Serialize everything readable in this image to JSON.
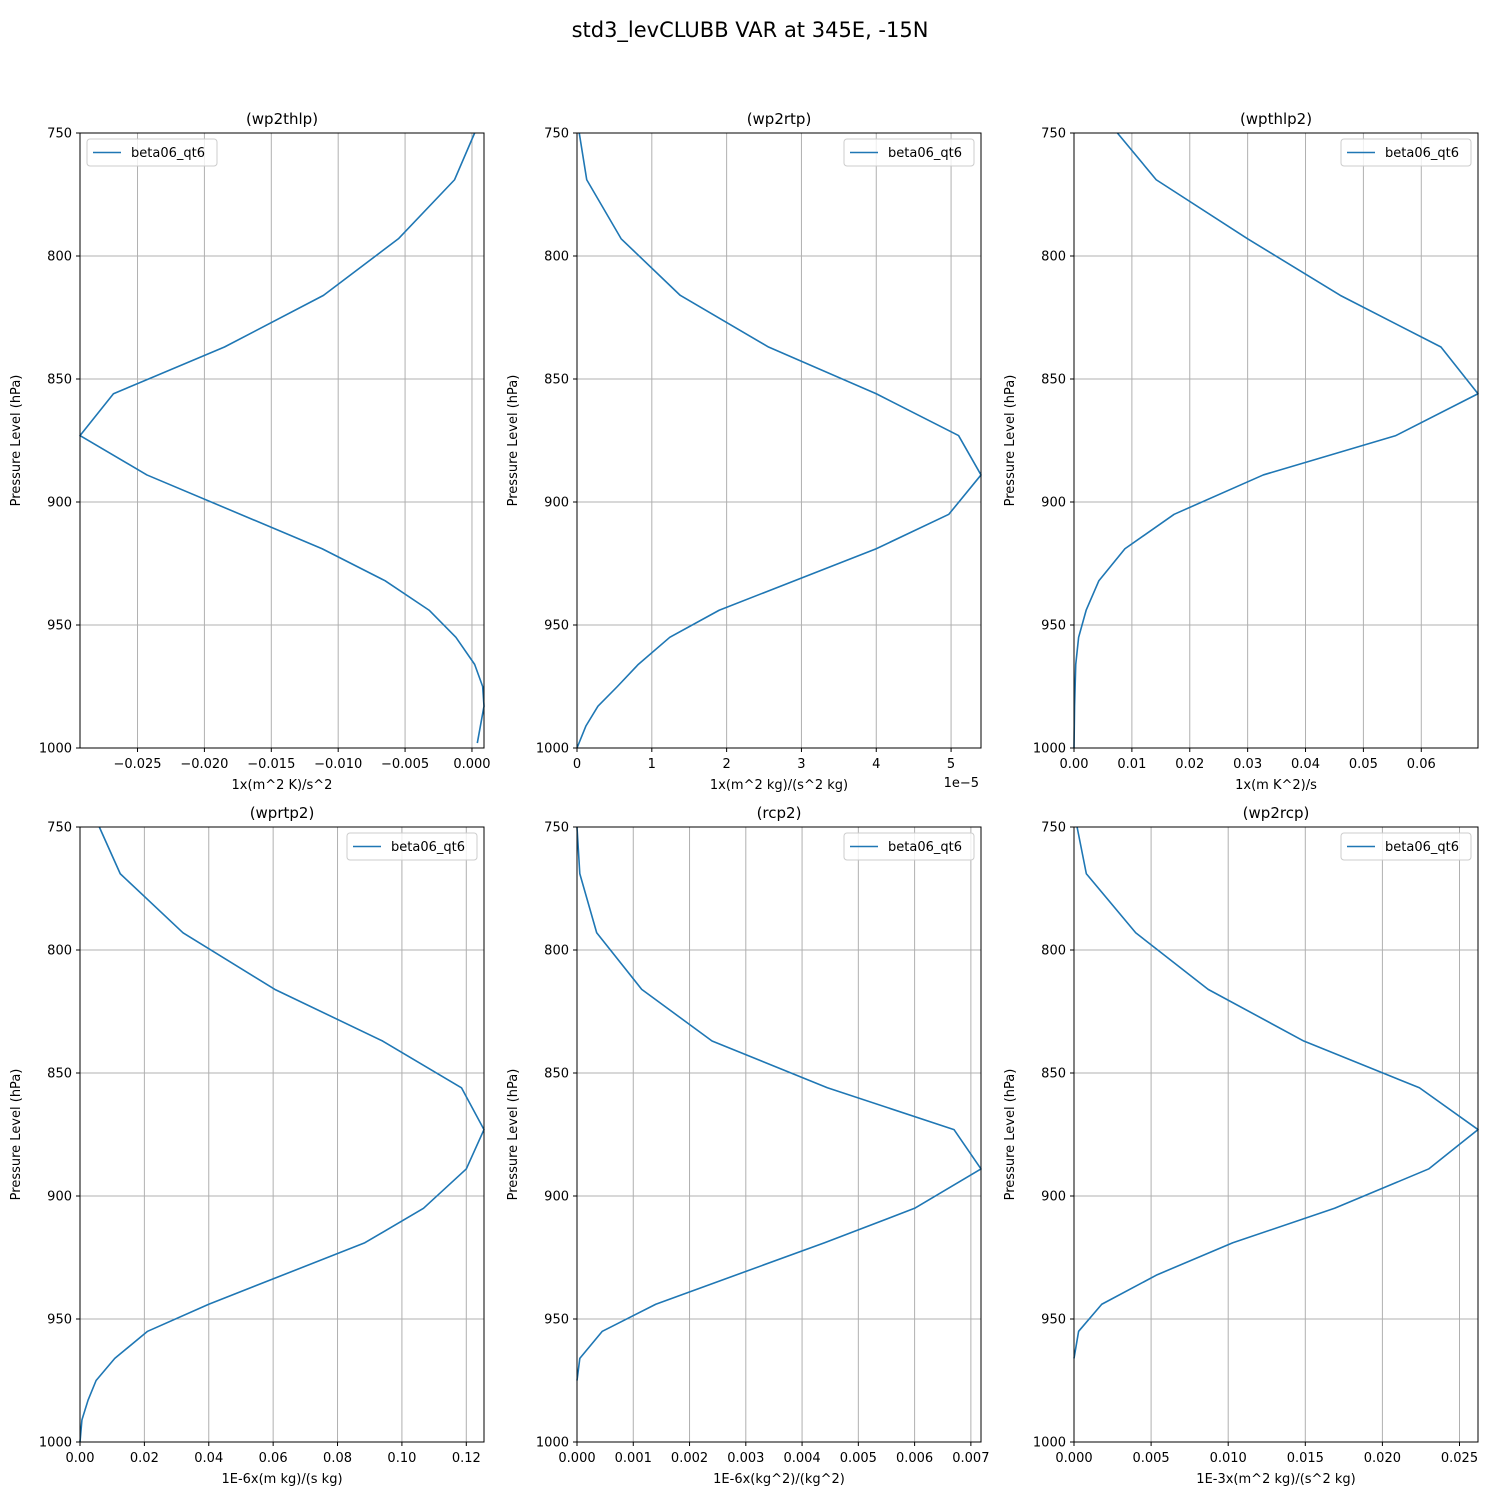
{
  "title": "std3_levCLUBB VAR at 345E, -15N",
  "colors": {
    "series": "#1f77b4",
    "grid": "#b0b0b0"
  },
  "chart_data": [
    {
      "type": "line",
      "title": "(wp2thlp)",
      "xlabel": "1x(m^2 K)/s^2",
      "ylabel": "Pressure Level (hPa)",
      "xlim": [
        -0.0293,
        0.0009
      ],
      "ylim": [
        1000,
        750
      ],
      "y_inverted": true,
      "x_ticks": [
        -0.025,
        -0.02,
        -0.015,
        -0.01,
        -0.005,
        0.0
      ],
      "x_tick_labels": [
        "−0.025",
        "−0.020",
        "−0.015",
        "−0.010",
        "−0.005",
        "0.000"
      ],
      "y_ticks": [
        750,
        800,
        850,
        900,
        950,
        1000
      ],
      "y_tick_labels": [
        "750",
        "800",
        "850",
        "900",
        "950",
        "1000"
      ],
      "x_offset_label": "",
      "legend": {
        "position": "upper-left",
        "entries": [
          "beta06_qt6"
        ]
      },
      "grid": true,
      "series": [
        {
          "name": "beta06_qt6",
          "x": [
            0.0002,
            -0.0013,
            -0.0055,
            -0.0111,
            -0.0185,
            -0.0268,
            -0.0293,
            -0.0243,
            -0.0112,
            -0.0065,
            -0.0032,
            -0.0012,
            0.0002,
            0.0008,
            0.0009,
            0.0004
          ],
          "y": [
            750,
            769,
            793,
            816,
            837,
            856,
            873,
            889,
            919,
            932,
            944,
            955,
            966,
            975,
            983,
            998
          ]
        }
      ]
    },
    {
      "type": "line",
      "title": "(wp2rtp)",
      "xlabel": "1x(m^2 kg)/(s^2 kg)",
      "ylabel": "Pressure Level (hPa)",
      "xlim": [
        0,
        5.4
      ],
      "ylim": [
        1000,
        750
      ],
      "y_inverted": true,
      "x_ticks": [
        0,
        1,
        2,
        3,
        4,
        5
      ],
      "x_tick_labels": [
        "0",
        "1",
        "2",
        "3",
        "4",
        "5"
      ],
      "y_ticks": [
        750,
        800,
        850,
        900,
        950,
        1000
      ],
      "y_tick_labels": [
        "750",
        "800",
        "850",
        "900",
        "950",
        "1000"
      ],
      "x_offset_label": "1e−5",
      "legend": {
        "position": "upper-right",
        "entries": [
          "beta06_qt6"
        ]
      },
      "grid": true,
      "series": [
        {
          "name": "beta06_qt6",
          "x": [
            0.03,
            0.13,
            0.59,
            1.38,
            2.56,
            4.0,
            5.1,
            5.4,
            4.97,
            4.0,
            1.9,
            1.24,
            0.82,
            0.54,
            0.28,
            0.12,
            0.0
          ],
          "y": [
            750,
            769,
            793,
            816,
            837,
            856,
            873,
            889,
            905,
            919,
            944,
            955,
            966,
            975,
            983,
            991,
            1000
          ]
        }
      ]
    },
    {
      "type": "line",
      "title": "(wpthlp2)",
      "xlabel": "1x(m K^2)/s",
      "ylabel": "Pressure Level (hPa)",
      "xlim": [
        0,
        0.0698
      ],
      "ylim": [
        1000,
        750
      ],
      "y_inverted": true,
      "x_ticks": [
        0.0,
        0.01,
        0.02,
        0.03,
        0.04,
        0.05,
        0.06
      ],
      "x_tick_labels": [
        "0.00",
        "0.01",
        "0.02",
        "0.03",
        "0.04",
        "0.05",
        "0.06"
      ],
      "y_ticks": [
        750,
        800,
        850,
        900,
        950,
        1000
      ],
      "y_tick_labels": [
        "750",
        "800",
        "850",
        "900",
        "950",
        "1000"
      ],
      "x_offset_label": "",
      "legend": {
        "position": "upper-right",
        "entries": [
          "beta06_qt6"
        ]
      },
      "grid": true,
      "series": [
        {
          "name": "beta06_qt6",
          "x": [
            0.0075,
            0.0142,
            0.03,
            0.046,
            0.0634,
            0.0698,
            0.0556,
            0.0327,
            0.0173,
            0.0088,
            0.0043,
            0.0021,
            0.0008,
            0.0003,
            0.0001,
            0.0
          ],
          "y": [
            750,
            769,
            793,
            816,
            837,
            856,
            873,
            889,
            905,
            919,
            932,
            944,
            955,
            966,
            983,
            1000
          ]
        }
      ]
    },
    {
      "type": "line",
      "title": "(wprtp2)",
      "xlabel": "1E-6x(m kg)/(s kg)",
      "ylabel": "Pressure Level (hPa)",
      "xlim": [
        0,
        0.1255
      ],
      "ylim": [
        1000,
        750
      ],
      "y_inverted": true,
      "x_ticks": [
        0.0,
        0.02,
        0.04,
        0.06,
        0.08,
        0.1,
        0.12
      ],
      "x_tick_labels": [
        "0.00",
        "0.02",
        "0.04",
        "0.06",
        "0.08",
        "0.10",
        "0.12"
      ],
      "y_ticks": [
        750,
        800,
        850,
        900,
        950,
        1000
      ],
      "y_tick_labels": [
        "750",
        "800",
        "850",
        "900",
        "950",
        "1000"
      ],
      "x_offset_label": "",
      "legend": {
        "position": "upper-right",
        "entries": [
          "beta06_qt6"
        ]
      },
      "grid": true,
      "series": [
        {
          "name": "beta06_qt6",
          "x": [
            0.006,
            0.0125,
            0.032,
            0.0605,
            0.094,
            0.1185,
            0.1255,
            0.12,
            0.1067,
            0.0885,
            0.04,
            0.021,
            0.0108,
            0.005,
            0.0025,
            0.0006,
            0.0
          ],
          "y": [
            750,
            769,
            793,
            816,
            837,
            856,
            873,
            889,
            905,
            919,
            944,
            955,
            966,
            975,
            983,
            991,
            1000
          ]
        }
      ]
    },
    {
      "type": "line",
      "title": "(rcp2)",
      "xlabel": "1E-6x(kg^2)/(kg^2)",
      "ylabel": "Pressure Level (hPa)",
      "xlim": [
        0,
        0.00718
      ],
      "ylim": [
        1000,
        750
      ],
      "y_inverted": true,
      "x_ticks": [
        0.0,
        0.001,
        0.002,
        0.003,
        0.004,
        0.005,
        0.006,
        0.007
      ],
      "x_tick_labels": [
        "0.000",
        "0.001",
        "0.002",
        "0.003",
        "0.004",
        "0.005",
        "0.006",
        "0.007"
      ],
      "y_ticks": [
        750,
        800,
        850,
        900,
        950,
        1000
      ],
      "y_tick_labels": [
        "750",
        "800",
        "850",
        "900",
        "950",
        "1000"
      ],
      "x_offset_label": "",
      "legend": {
        "position": "upper-right",
        "entries": [
          "beta06_qt6"
        ]
      },
      "grid": true,
      "series": [
        {
          "name": "beta06_qt6",
          "x": [
            0.0,
            5e-05,
            0.00035,
            0.00115,
            0.0024,
            0.00445,
            0.0067,
            0.00718,
            0.006,
            0.0044,
            0.0014,
            0.00045,
            5e-05,
            0.0
          ],
          "y": [
            750,
            769,
            793,
            816,
            837,
            856,
            873,
            889,
            905,
            919,
            944,
            955,
            966,
            975
          ]
        }
      ]
    },
    {
      "type": "line",
      "title": "(wp2rcp)",
      "xlabel": "1E-3x(m^2 kg)/(s^2 kg)",
      "ylabel": "Pressure Level (hPa)",
      "xlim": [
        0,
        0.0262
      ],
      "ylim": [
        1000,
        750
      ],
      "y_inverted": true,
      "x_ticks": [
        0.0,
        0.005,
        0.01,
        0.015,
        0.02,
        0.025
      ],
      "x_tick_labels": [
        "0.000",
        "0.005",
        "0.010",
        "0.015",
        "0.020",
        "0.025"
      ],
      "y_ticks": [
        750,
        800,
        850,
        900,
        950,
        1000
      ],
      "y_tick_labels": [
        "750",
        "800",
        "850",
        "900",
        "950",
        "1000"
      ],
      "x_offset_label": "",
      "legend": {
        "position": "upper-right",
        "entries": [
          "beta06_qt6"
        ]
      },
      "grid": true,
      "series": [
        {
          "name": "beta06_qt6",
          "x": [
            0.0002,
            0.0008,
            0.004,
            0.0087,
            0.0149,
            0.0224,
            0.0262,
            0.023,
            0.0169,
            0.0103,
            0.0054,
            0.0018,
            0.0003,
            0.0
          ],
          "y": [
            750,
            769,
            793,
            816,
            837,
            856,
            873,
            889,
            905,
            919,
            932,
            944,
            955,
            966
          ]
        }
      ]
    }
  ]
}
